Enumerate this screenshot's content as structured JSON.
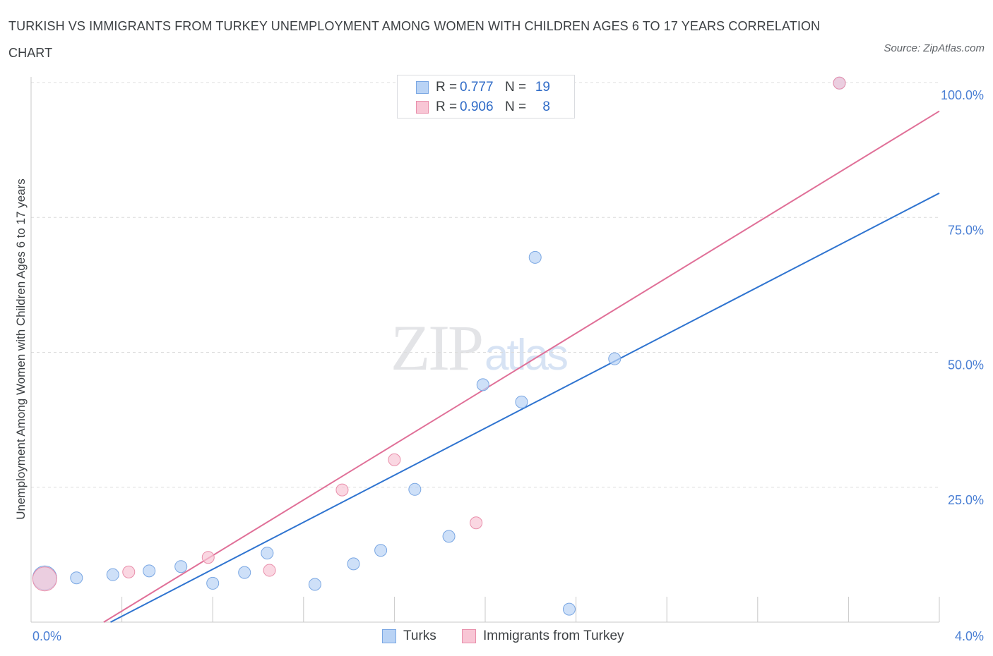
{
  "title": "TURKISH VS IMMIGRANTS FROM TURKEY UNEMPLOYMENT AMONG WOMEN WITH CHILDREN AGES 6 TO 17 YEARS CORRELATION CHART",
  "source": "Source: ZipAtlas.com",
  "watermark": {
    "zip": "ZIP",
    "atlas": "atlas"
  },
  "colors": {
    "turks_fill": "#b9d3f5",
    "turks_stroke": "#7aa7e3",
    "turks_line": "#2f74d0",
    "imm_fill": "#f8c6d5",
    "imm_stroke": "#e98fab",
    "imm_line": "#e07098",
    "grid": "#dcdcdc",
    "axis_label": "#4a7fd4"
  },
  "legend_top": [
    {
      "r_label": "R =",
      "r_value": "0.777",
      "n_label": "N =",
      "n_value": "19"
    },
    {
      "r_label": "R =",
      "r_value": "0.906",
      "n_label": "N =",
      "n_value": "8"
    }
  ],
  "chart_data": {
    "type": "scatter",
    "title": "TURKISH VS IMMIGRANTS FROM TURKEY UNEMPLOYMENT AMONG WOMEN WITH CHILDREN AGES 6 TO 17 YEARS CORRELATION CHART",
    "xlabel": "",
    "ylabel": "Unemployment Among Women with Children Ages 6 to 17 years",
    "xlim": [
      0,
      4.0
    ],
    "ylim": [
      0,
      100
    ],
    "x_tick_labels": [
      "0.0%",
      "4.0%"
    ],
    "y_tick_values": [
      25,
      50,
      75,
      100
    ],
    "y_tick_labels": [
      "25.0%",
      "50.0%",
      "75.0%",
      "100.0%"
    ],
    "grid": true,
    "series": [
      {
        "name": "Turks",
        "R": 0.777,
        "N": 19,
        "points": [
          {
            "x": 0.06,
            "y": 8.2,
            "size": "large"
          },
          {
            "x": 0.2,
            "y": 8.2
          },
          {
            "x": 0.36,
            "y": 8.8
          },
          {
            "x": 0.52,
            "y": 9.5
          },
          {
            "x": 0.66,
            "y": 10.3
          },
          {
            "x": 0.8,
            "y": 7.2
          },
          {
            "x": 0.94,
            "y": 9.2
          },
          {
            "x": 1.04,
            "y": 12.8
          },
          {
            "x": 1.25,
            "y": 7.0
          },
          {
            "x": 1.42,
            "y": 10.8
          },
          {
            "x": 1.54,
            "y": 13.3
          },
          {
            "x": 1.69,
            "y": 24.6
          },
          {
            "x": 1.84,
            "y": 15.9
          },
          {
            "x": 1.99,
            "y": 44.0
          },
          {
            "x": 2.16,
            "y": 40.8
          },
          {
            "x": 2.22,
            "y": 67.6
          },
          {
            "x": 2.37,
            "y": 2.4
          },
          {
            "x": 2.57,
            "y": 48.8
          },
          {
            "x": 3.56,
            "y": 99.9
          }
        ],
        "trendline": {
          "x": [
            0.35,
            4.0
          ],
          "y": [
            0.0,
            79.5
          ]
        }
      },
      {
        "name": "Immigrants from Turkey",
        "R": 0.906,
        "N": 8,
        "points": [
          {
            "x": 0.06,
            "y": 8.0,
            "size": "large"
          },
          {
            "x": 0.43,
            "y": 9.3
          },
          {
            "x": 0.78,
            "y": 12.0
          },
          {
            "x": 1.05,
            "y": 9.6
          },
          {
            "x": 1.37,
            "y": 24.5
          },
          {
            "x": 1.6,
            "y": 30.1
          },
          {
            "x": 1.96,
            "y": 18.4
          },
          {
            "x": 3.56,
            "y": 99.9
          }
        ],
        "trendline": {
          "x": [
            0.32,
            4.0
          ],
          "y": [
            0.0,
            94.7
          ]
        }
      }
    ],
    "legend": {
      "position": "bottom-center",
      "entries": [
        "Turks",
        "Immigrants from Turkey"
      ]
    }
  }
}
